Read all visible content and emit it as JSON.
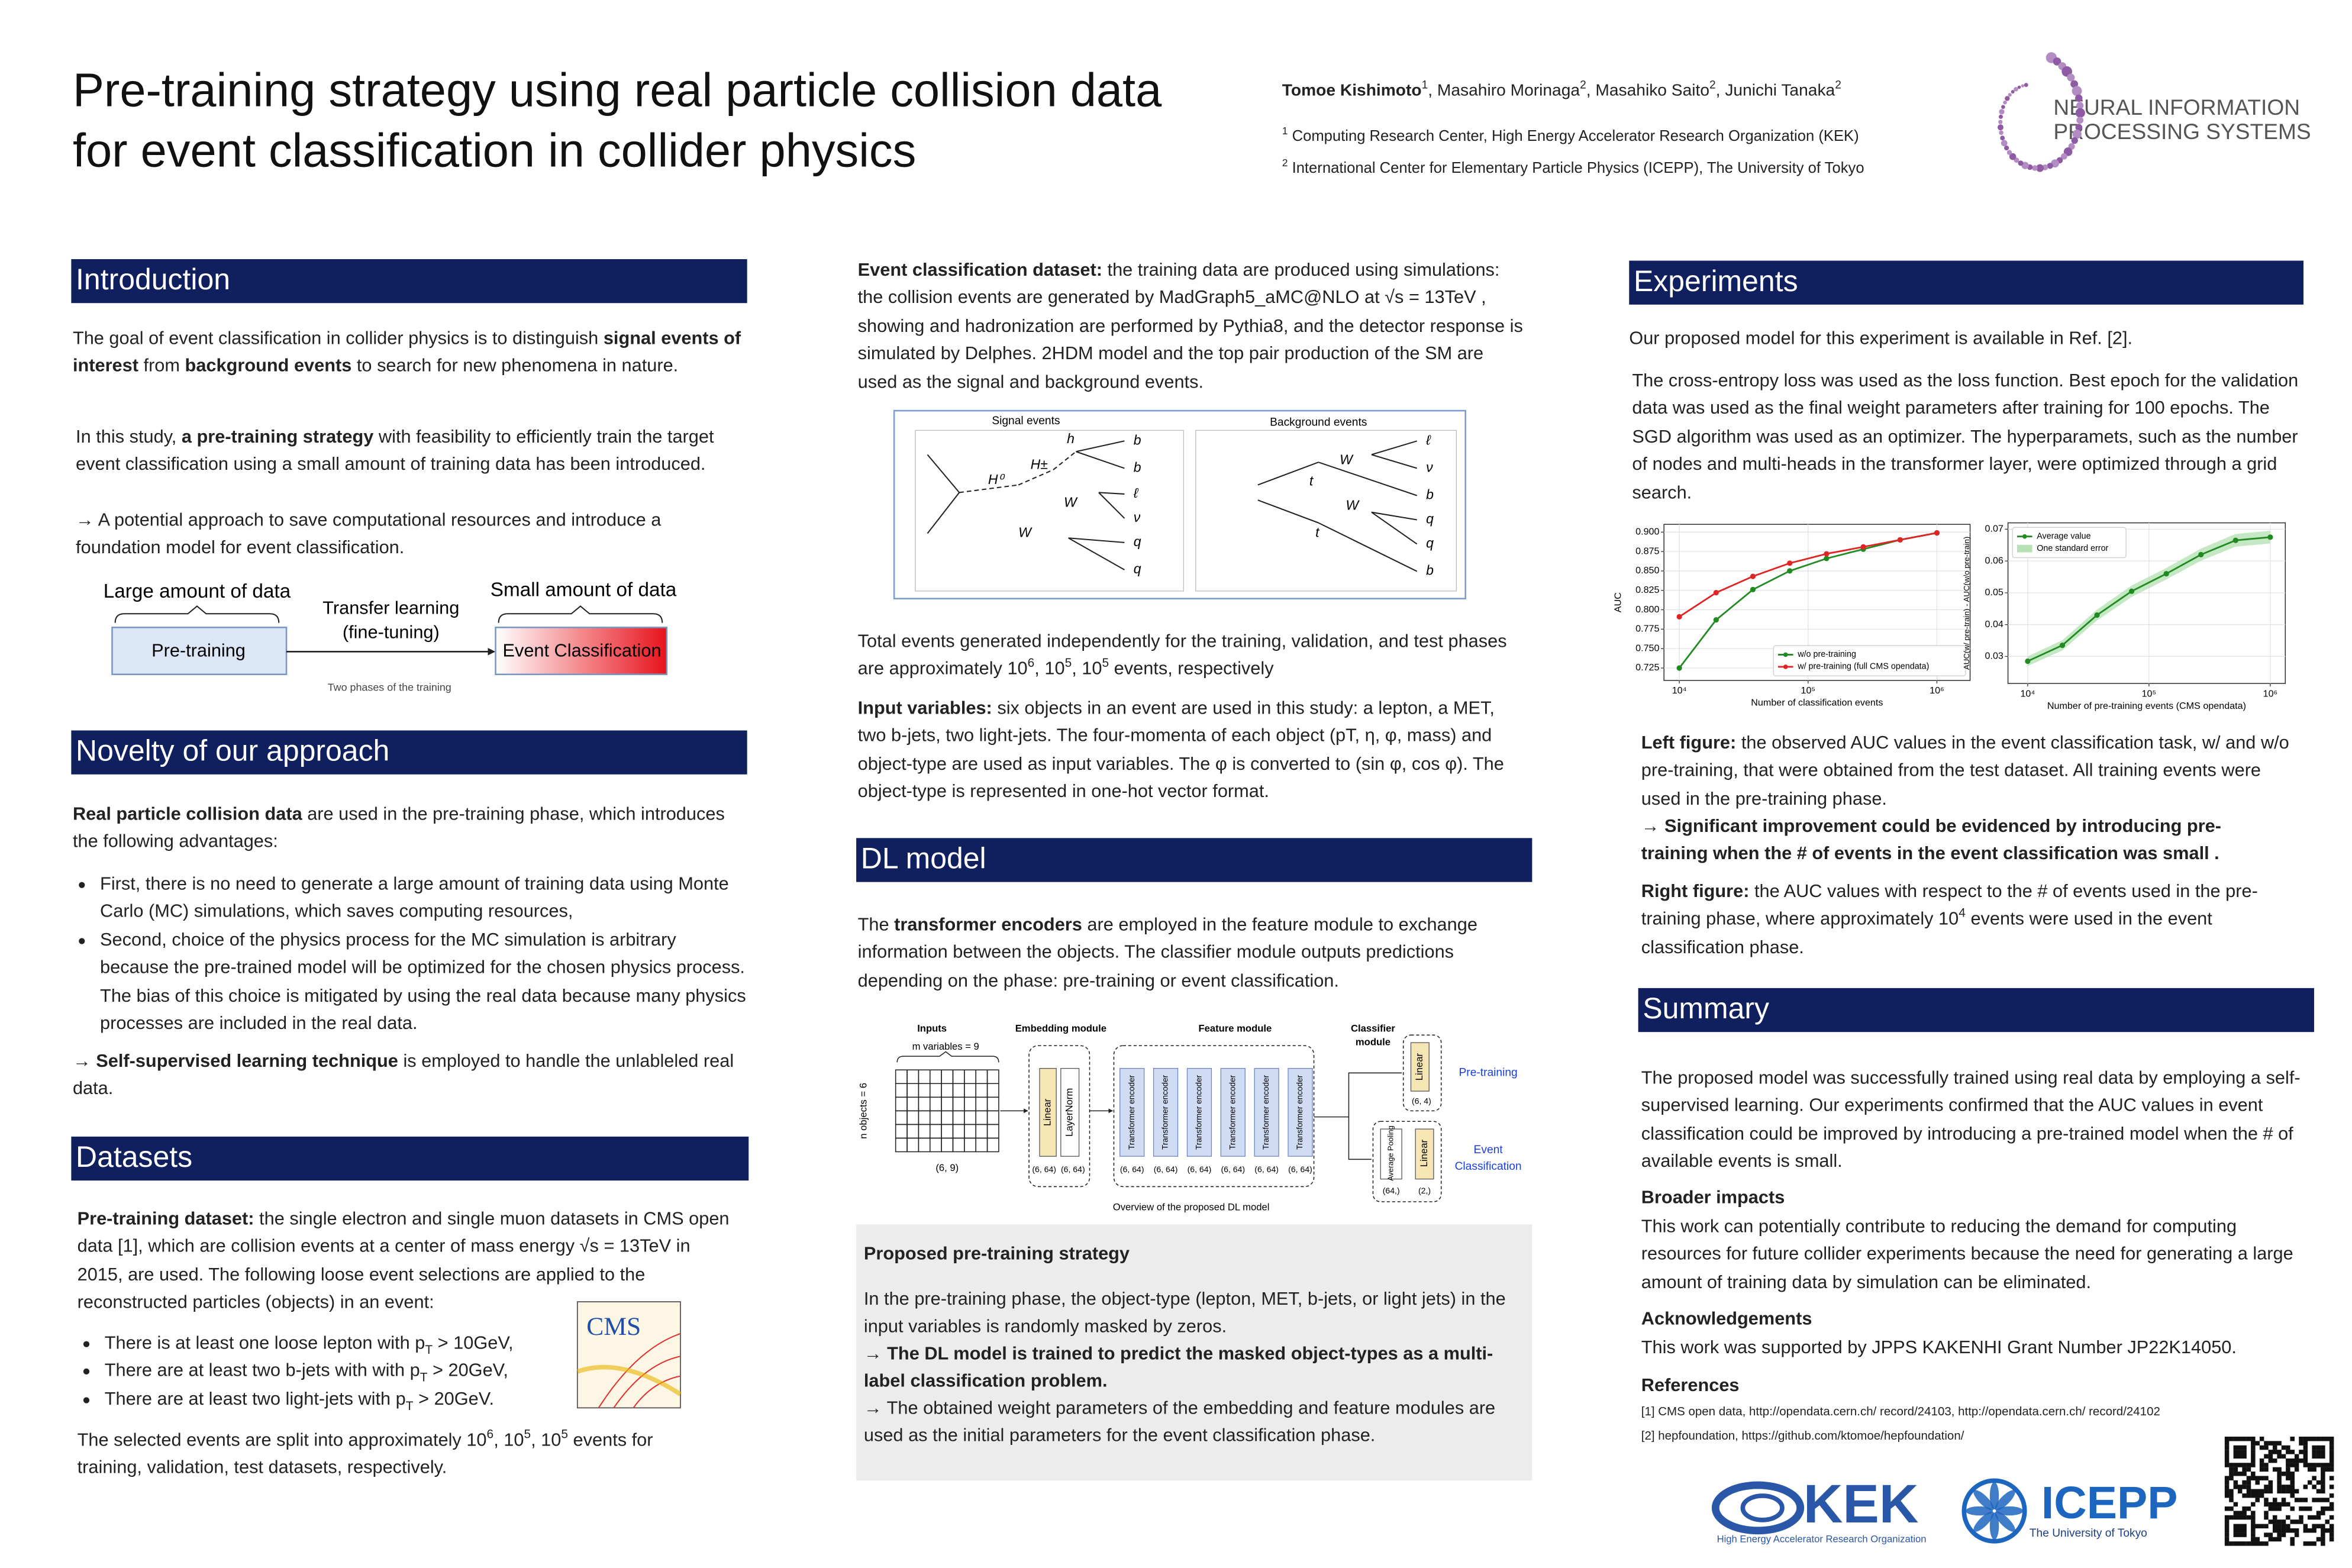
{
  "header": {
    "title_lines": [
      "Pre-training strategy using real particle collision data",
      "for event classification in collider physics"
    ],
    "authors": [
      {
        "b": "Tomoe Kishimoto"
      },
      {
        "sup": "1"
      },
      ", Masahiro Morinaga",
      {
        "sup": "2"
      },
      ", Masahiko Saito",
      {
        "sup": "2"
      },
      ", Junichi Tanaka",
      {
        "sup": "2"
      }
    ],
    "affiliations": [
      [
        {
          "sup": "1"
        },
        " Computing Research Center, High Energy Accelerator Research Organization (KEK)"
      ],
      [
        {
          "sup": "2"
        },
        " International Center for Elementary Particle Physics (ICEPP), The University of Tokyo"
      ]
    ],
    "logo": [
      "NEURAL INFORMATION",
      "PROCESSING SYSTEMS"
    ]
  },
  "introduction": {
    "heading": "Introduction",
    "paragraphs": [
      [
        "The goal of event classification in collider physics is to distinguish ",
        {
          "b": "signal events of interest"
        },
        " from ",
        {
          "b": "background events"
        },
        " to search for new phenomena in nature."
      ],
      [
        "In this study, ",
        {
          "b": "a pre-training strategy"
        },
        " with feasibility to efficiently train the target event classification using a small amount of training data has been introduced."
      ],
      [
        "→ A potential approach to save computational resources and introduce a foundation model for event classification."
      ]
    ],
    "figure": {
      "large": "Large amount of data",
      "transfer": [
        "Transfer learning",
        "(fine-tuning)"
      ],
      "small": "Small amount of data",
      "pretraining": "Pre-training",
      "classification": "Event Classification",
      "caption": "Two phases of the training"
    }
  },
  "novelty": {
    "heading": "Novelty of our approach",
    "intro": [
      {
        "b": "Real particle collision data"
      },
      " are used in the pre-training phase, which introduces the following advantages:"
    ],
    "bullets": [
      [
        "First, there is no need to generate a large amount of training data using Monte Carlo (MC) simulations, which saves computing resources,"
      ],
      [
        "Second, choice of the physics process for the MC simulation is arbitrary because the pre-trained model will be optimized for the chosen physics process. The bias of this choice is mitigated by using the real data because many physics processes are included in the real data."
      ]
    ],
    "closing": [
      "→ ",
      {
        "b": "Self-supervised learning technique"
      },
      " is employed to handle the unlableled real data."
    ]
  },
  "datasets": {
    "heading": "Datasets",
    "intro": [
      {
        "b": "Pre-training dataset:"
      },
      " the single electron and single muon datasets in CMS open data [1], which are collision events at a center of mass energy √s = 13TeV in 2015, are used. The following loose event selections are applied to the reconstructed particles (objects) in an event:"
    ],
    "bullets": [
      [
        "There is at least one loose lepton with p",
        {
          "sub": "T"
        },
        " > 10GeV,"
      ],
      [
        "There are at least two b-jets with with p",
        {
          "sub": "T"
        },
        " > 20GeV,"
      ],
      [
        "There are at least two light-jets with p",
        {
          "sub": "T"
        },
        " > 20GeV."
      ]
    ],
    "closing": [
      "The selected events are split into approximately 10",
      {
        "sup": "6"
      },
      ", 10",
      {
        "sup": "5"
      },
      ", 10",
      {
        "sup": "5"
      },
      " events for training, validation, test datasets, respectively."
    ],
    "cms_logo": "CMS"
  },
  "event_dataset": {
    "paragraphs": [
      [
        {
          "b": "Event classification dataset:"
        },
        " the training data are produced using simulations: the collision events are generated by MadGraph5_aMC@NLO at √s = 13TeV , showing and hadronization are performed by Pythia8, and the detector response is simulated by Delphes. 2HDM model and the top pair production of the SM are used as the signal and background events."
      ],
      [
        "Total events generated independently for the training, validation, and test phases are approximately 10",
        {
          "sup": "6"
        },
        ", 10",
        {
          "sup": "5"
        },
        ", 10",
        {
          "sup": "5"
        },
        " events, respectively"
      ],
      [
        {
          "b": "Input variables:"
        },
        " six objects in an event are used in this study: a lepton, a MET, two b-jets, two light-jets. The four-momenta of each object (pT, η, φ, mass) and object-type are used as input variables. The φ is converted to (sin φ, cos φ). The object-type is represented in one-hot vector format."
      ]
    ],
    "feynman": {
      "signal": {
        "title": "Signal events",
        "labels": [
          "H⁰",
          "H±",
          "h",
          "W",
          "W",
          "b",
          "b",
          "ℓ",
          "ν",
          "q",
          "q"
        ]
      },
      "background": {
        "title": "Background events",
        "labels": [
          "W",
          "t",
          "W",
          "t",
          "ℓ",
          "ν",
          "b",
          "q",
          "q",
          "b"
        ]
      }
    }
  },
  "dl_model": {
    "heading": "DL model",
    "paragraph": [
      "The ",
      {
        "b": "transformer encoders"
      },
      " are employed in the feature module to exchange information between the objects. The classifier module outputs predictions depending on the phase: pre-training or event classification."
    ],
    "diagram": {
      "inputs": "Inputs",
      "m_variables": "m variables = 9",
      "n_objects": "n objects = 6",
      "input_shape": "(6, 9)",
      "embedding_module": "Embedding module",
      "linear": "Linear",
      "layernorm": "LayerNorm",
      "embedding_shapes": [
        "(6, 64)",
        "(6, 64)"
      ],
      "feature_module": "Feature module",
      "encoders": [
        "Transformer encoder",
        "Transformer encoder",
        "Transformer encoder",
        "Transformer encoder",
        "Transformer encoder",
        "Transformer encoder"
      ],
      "encoder_shapes": [
        "(6, 64)",
        "(6, 64)",
        "(6, 64)",
        "(6, 64)",
        "(6, 64)",
        "(6, 64)"
      ],
      "classifier_module": [
        "Classifier",
        "module"
      ],
      "pretrain_linear": "Linear",
      "pretrain_shape": "(6, 4)",
      "pretrain_label": "Pre-training",
      "pooling": "Average Pooling",
      "cls_linear": "Linear",
      "cls_shapes": [
        "(64,)",
        "(2,)"
      ],
      "cls_label": [
        "Event",
        "Classification"
      ],
      "caption": "Overview of the proposed DL model"
    },
    "strategy": {
      "title": "Proposed pre-training strategy",
      "paragraphs": [
        [
          "In the pre-training phase, the object-type (lepton, MET, b-jets, or light jets) in the input variables is randomly masked by zeros."
        ],
        [
          {
            "b": "→ The DL model is trained to predict the masked object-types as a multi-label classification problem."
          }
        ],
        [
          "→ The obtained weight parameters of the embedding and feature modules are used as the initial parameters for the event classification phase."
        ]
      ]
    }
  },
  "experiments": {
    "heading": "Experiments",
    "paragraphs": [
      [
        "Our proposed model for this experiment is available in Ref. [2]."
      ],
      [
        "The cross-entropy loss was used as the loss function. Best epoch for the validation data was used as the final weight parameters after training for 100 epochs. The SGD algorithm was used as an optimizer. The hyperparamets, such as the number of nodes and multi-heads in the transformer layer, were optimized through a grid search."
      ]
    ],
    "discussion": [
      [
        {
          "b": "Left figure:"
        },
        " the observed AUC values in the event classification task, w/ and w/o pre-training, that were obtained from the test dataset. All training events were used in the pre-training phase."
      ],
      [
        {
          "b": "→ Significant improvement could be evidenced by introducing pre-training when the # of events in the event classification was small ."
        }
      ],
      [
        {
          "b": "Right figure:"
        },
        " the AUC values with respect to the # of events used in the pre-training phase, where approximately 10",
        {
          "sup": "4"
        },
        " events were used in the event classification phase."
      ]
    ]
  },
  "chart_data": [
    {
      "type": "line",
      "xlabel": "Number of classification events",
      "ylabel": "AUC",
      "xlog": true,
      "x": [
        10000,
        19307,
        37276,
        71969,
        138950,
        268270,
        517947,
        1000000
      ],
      "xlim": [
        7600,
        1810000
      ],
      "xticks": [
        {
          "value": 10000,
          "label": "10⁴"
        },
        {
          "value": 100000,
          "label": "10⁵"
        },
        {
          "value": 1000000,
          "label": "10⁶"
        }
      ],
      "ylim": [
        0.709,
        0.91
      ],
      "yticks": [
        0.725,
        {
          "value": 0.75,
          "label": "0.750"
        },
        0.775,
        {
          "value": 0.8,
          "label": "0.800"
        },
        0.825,
        {
          "value": 0.85,
          "label": "0.850"
        },
        0.875,
        {
          "value": 0.9,
          "label": "0.900"
        }
      ],
      "grid": true,
      "legend": "lower right",
      "series": [
        {
          "name": "w/o pre-training",
          "color": "#218a21",
          "values": [
            0.725,
            0.787,
            0.826,
            0.85,
            0.866,
            0.878,
            0.89,
            0.899
          ]
        },
        {
          "name": "w/ pre-training (full CMS opendata)",
          "color": "#e02424",
          "values": [
            0.791,
            0.822,
            0.843,
            0.86,
            0.872,
            0.881,
            0.89,
            0.899
          ]
        }
      ]
    },
    {
      "type": "line",
      "xlabel": "Number of pre-training events (CMS opendata)",
      "ylabel": "AUC(w/ pre-train) - AUC(w/o pre-train)",
      "xlog": true,
      "x": [
        10000,
        19307,
        37276,
        71969,
        138950,
        268270,
        517947,
        1000000
      ],
      "xlim": [
        6880,
        1330000
      ],
      "xticks": [
        {
          "value": 10000,
          "label": "10⁴"
        },
        {
          "value": 100000,
          "label": "10⁵"
        },
        {
          "value": 1000000,
          "label": "10⁶"
        }
      ],
      "ylim": [
        0.0215,
        0.072
      ],
      "yticks": [
        0.03,
        0.04,
        0.05,
        0.06,
        0.07
      ],
      "grid": true,
      "legend": "upper left",
      "series": [
        {
          "name": "Average value",
          "color": "#218a21",
          "values": [
            0.0285,
            0.0335,
            0.043,
            0.0505,
            0.056,
            0.062,
            0.0665,
            0.0675
          ],
          "errors": [
            0.0015,
            0.0016,
            0.0017,
            0.0018,
            0.0018,
            0.0019,
            0.002,
            0.002
          ],
          "error_name": "One standard error",
          "error_color": "#b5e2b5"
        }
      ]
    }
  ],
  "summary": {
    "heading": "Summary",
    "paragraph": [
      "The proposed model was successfully trained using real data by employing  a self-supervised learning. Our experiments confirmed that the AUC values in event classification could be improved by introducing a pre-trained model when the # of available events is small."
    ],
    "broader_title": "Broader impacts",
    "broader": "This work can potentially contribute to reducing the demand for computing resources for future collider experiments because the need for  generating a large amount of training data by simulation can be eliminated.",
    "ack_title": "Acknowledgements",
    "ack": "This work was supported by JPPS KAKENHI Grant Number JP22K14050.",
    "refs_title": "References",
    "refs": [
      "[1] CMS open data, http://opendata.cern.ch/ record/24103, http://opendata.cern.ch/ record/24102",
      "[2] hepfoundation, https://github.com/ktomoe/hepfoundation/"
    ]
  },
  "footer": {
    "kek": "KEK",
    "kek_sub": "High Energy Accelerator Research Organization",
    "icepp": "ICEPP",
    "icepp_sub": "The University of Tokyo"
  }
}
